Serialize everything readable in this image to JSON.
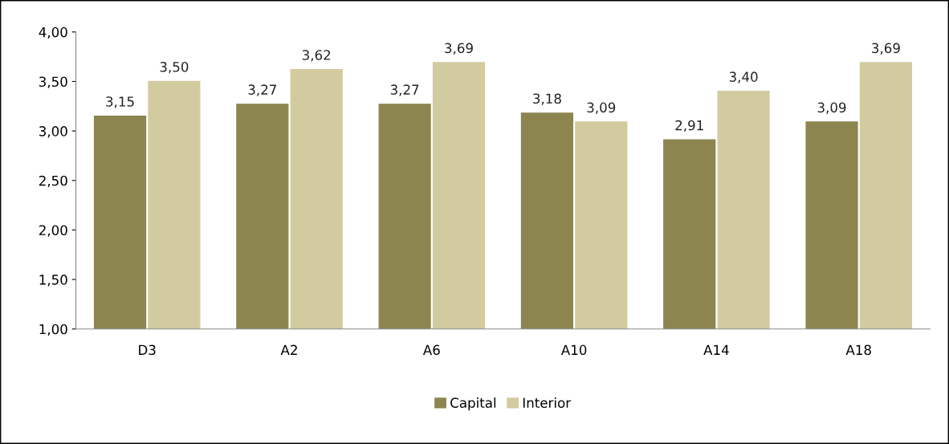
{
  "chart_data": {
    "type": "bar",
    "categories": [
      "D3",
      "A2",
      "A6",
      "A10",
      "A14",
      "A18"
    ],
    "series": [
      {
        "name": "Capital",
        "color": "#8c8550",
        "values": [
          3.15,
          3.27,
          3.27,
          3.18,
          2.91,
          3.09
        ],
        "value_labels": [
          "3,15",
          "3,27",
          "3,27",
          "3,18",
          "2,91",
          "3,09"
        ]
      },
      {
        "name": "Interior",
        "color": "#d3cba0",
        "values": [
          3.5,
          3.62,
          3.69,
          3.09,
          3.4,
          3.69
        ],
        "value_labels": [
          "3,50",
          "3,62",
          "3,69",
          "3,09",
          "3,40",
          "3,69"
        ]
      }
    ],
    "ylim": [
      1,
      4
    ],
    "yticks": [
      {
        "value": 1,
        "label": "1,00"
      },
      {
        "value": 1.5,
        "label": "1,50"
      },
      {
        "value": 2,
        "label": "2,00"
      },
      {
        "value": 2.5,
        "label": "2,50"
      },
      {
        "value": 3,
        "label": "3,00"
      },
      {
        "value": 3.5,
        "label": "3,50"
      },
      {
        "value": 4,
        "label": "4,00"
      }
    ],
    "grid": false,
    "legend": "bottom"
  }
}
